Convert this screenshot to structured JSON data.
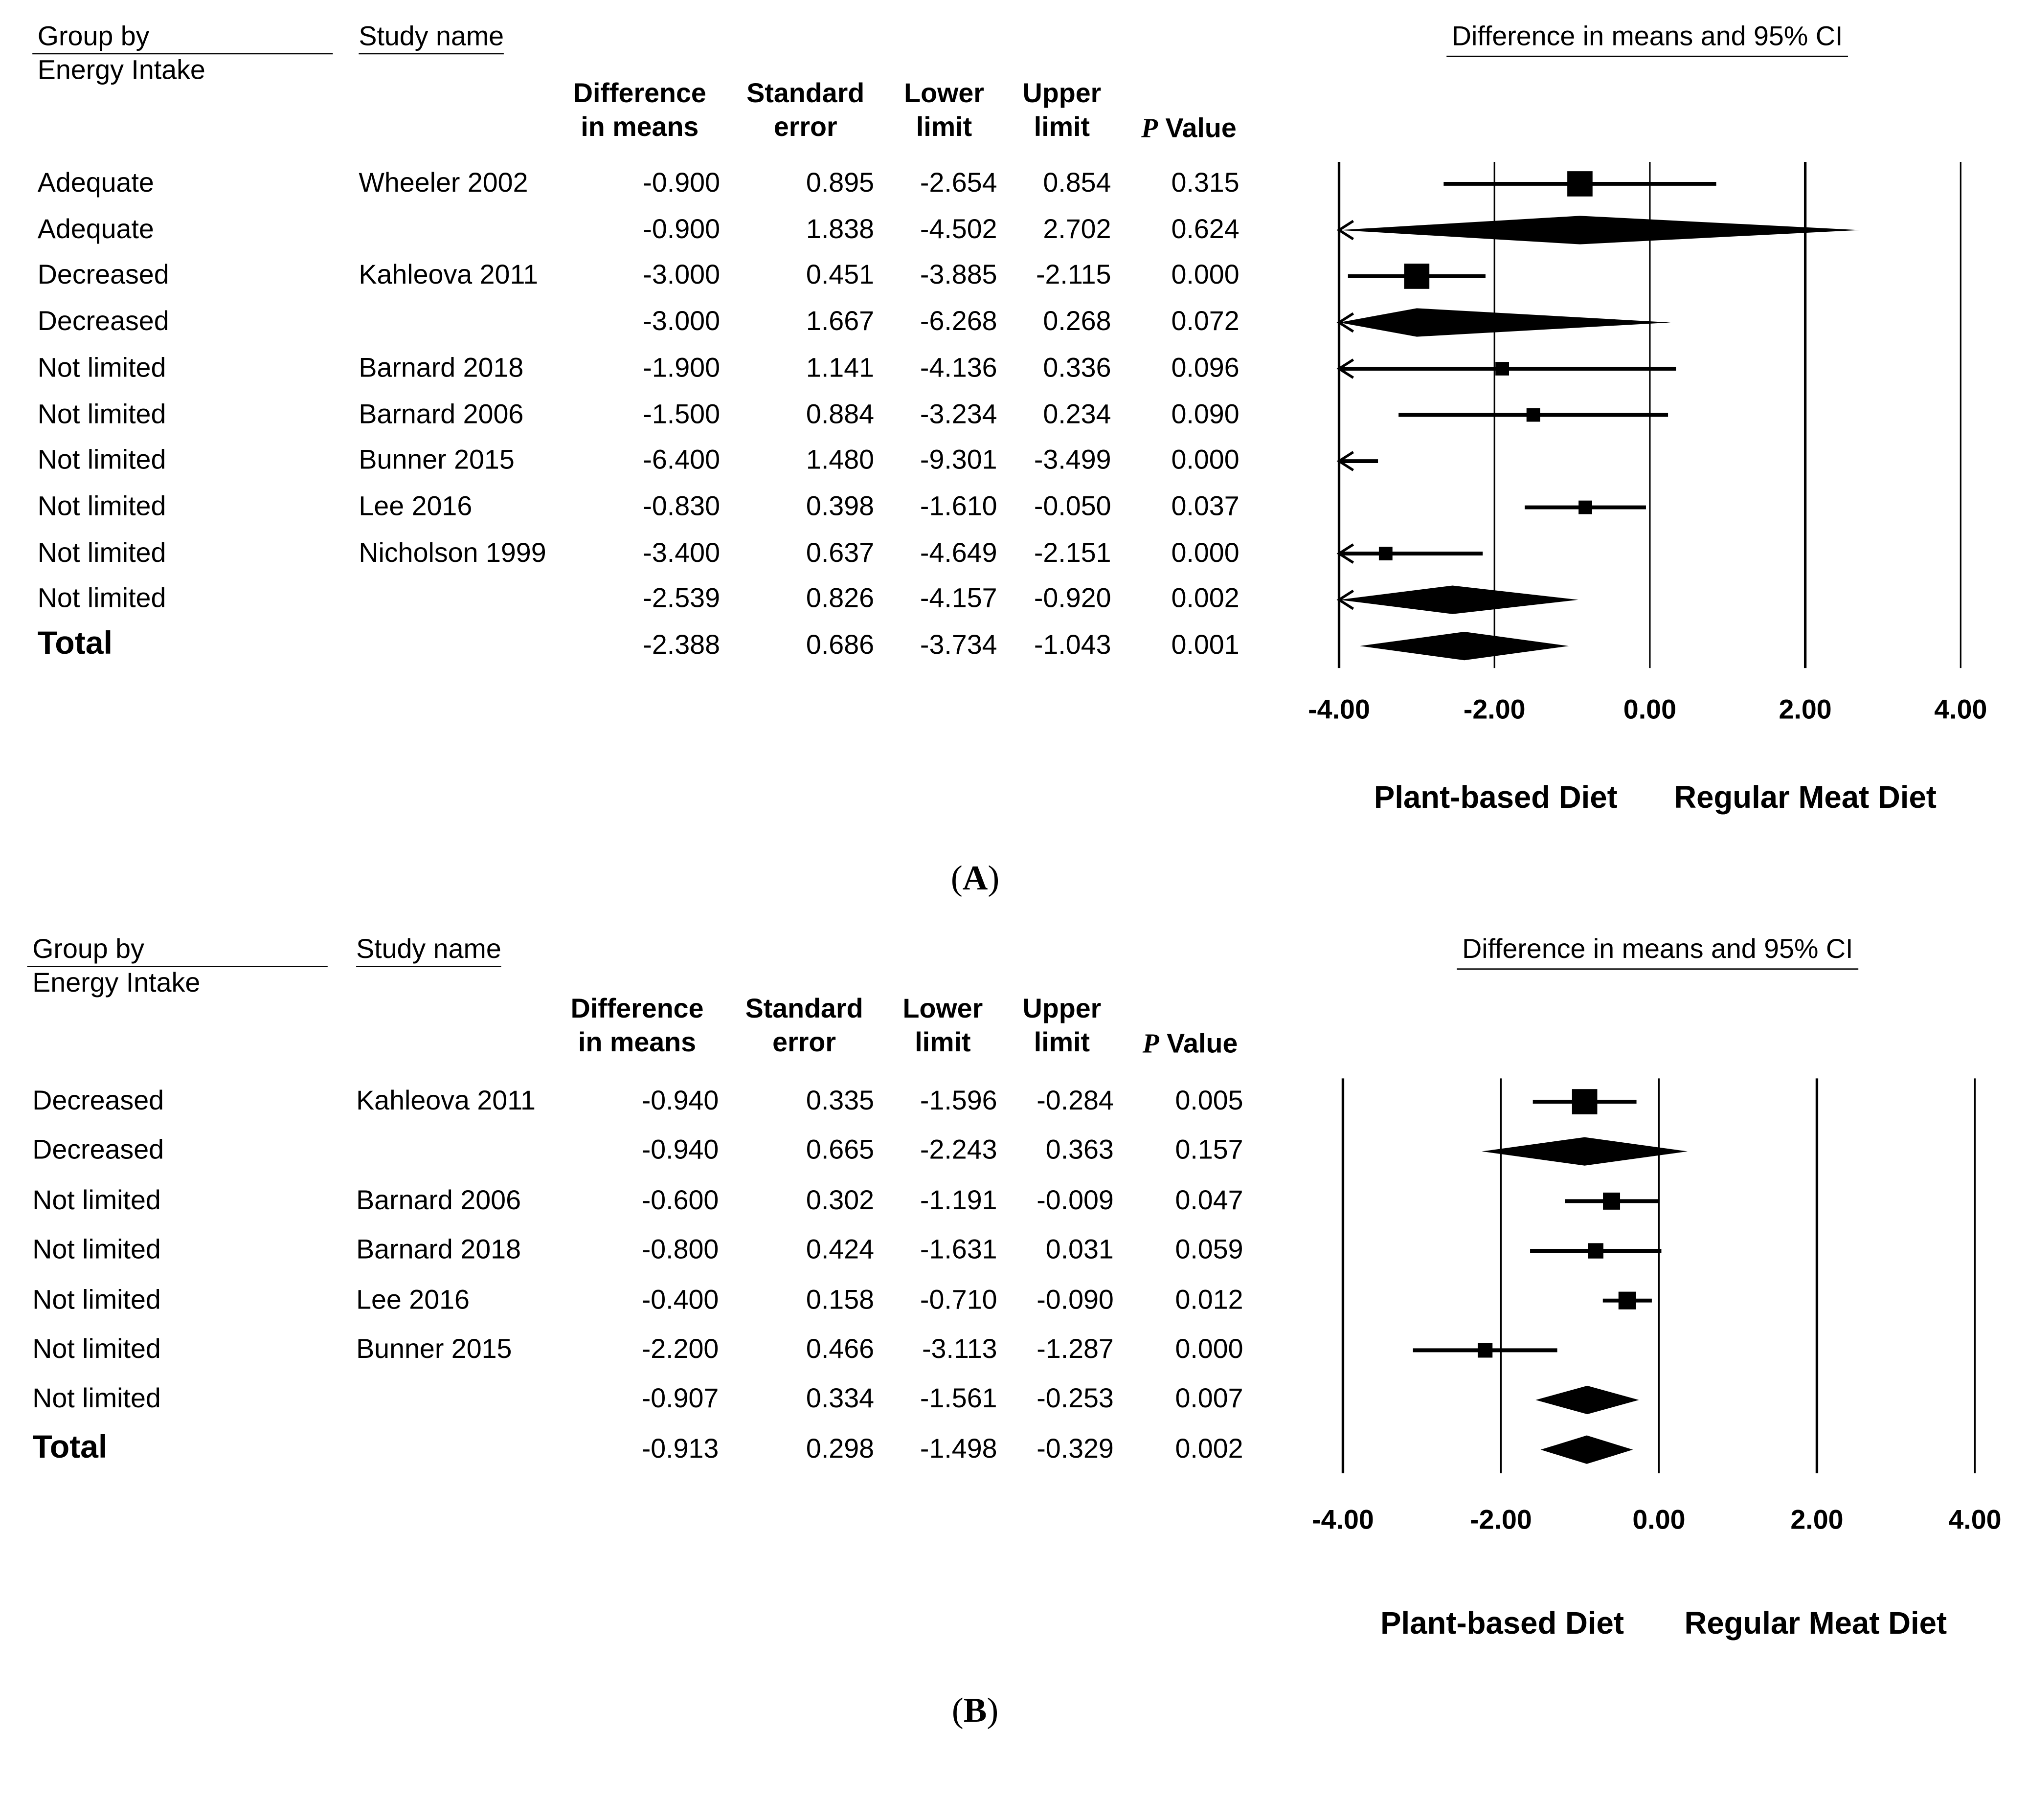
{
  "chart_data": [
    {
      "type": "forest",
      "panel_label": "A",
      "title": "Difference in means and 95% CI",
      "columns": {
        "group": "Group by",
        "group_sub": "Energy Intake",
        "study": "Study name",
        "diff": [
          "Difference",
          "in means"
        ],
        "se": [
          "Standard",
          "error"
        ],
        "lower": [
          "Lower",
          "limit"
        ],
        "upper": [
          "Upper",
          "limit"
        ],
        "p_italic": "P",
        "p_rest": " Value"
      },
      "xlim": [
        -4,
        4
      ],
      "xticks": [
        "-4.00",
        "-2.00",
        "0.00",
        "2.00",
        "4.00"
      ],
      "xtick_values": [
        -4,
        -2,
        0,
        2,
        4
      ],
      "left_label": "Plant-based Diet",
      "right_label": "Regular Meat Diet",
      "rows": [
        {
          "group": "Adequate",
          "study": "Wheeler 2002",
          "diff": "-0.900",
          "se": "0.895",
          "lower": "-2.654",
          "upper": "0.854",
          "p": "0.315",
          "kind": "study",
          "weight": 3
        },
        {
          "group": "Adequate",
          "study": "",
          "diff": "-0.900",
          "se": "1.838",
          "lower": "-4.502",
          "upper": "2.702",
          "p": "0.624",
          "kind": "subtotal"
        },
        {
          "group": "Decreased",
          "study": "Kahleova 2011",
          "diff": "-3.000",
          "se": "0.451",
          "lower": "-3.885",
          "upper": "-2.115",
          "p": "0.000",
          "kind": "study",
          "weight": 3
        },
        {
          "group": "Decreased",
          "study": "",
          "diff": "-3.000",
          "se": "1.667",
          "lower": "-6.268",
          "upper": "0.268",
          "p": "0.072",
          "kind": "subtotal"
        },
        {
          "group": "Not limited",
          "study": "Barnard 2018",
          "diff": "-1.900",
          "se": "1.141",
          "lower": "-4.136",
          "upper": "0.336",
          "p": "0.096",
          "kind": "study",
          "weight": 1
        },
        {
          "group": "Not limited",
          "study": "Barnard 2006",
          "diff": "-1.500",
          "se": "0.884",
          "lower": "-3.234",
          "upper": "0.234",
          "p": "0.090",
          "kind": "study",
          "weight": 1
        },
        {
          "group": "Not limited",
          "study": "Bunner 2015",
          "diff": "-6.400",
          "se": "1.480",
          "lower": "-9.301",
          "upper": "-3.499",
          "p": "0.000",
          "kind": "study",
          "weight": 1
        },
        {
          "group": "Not limited",
          "study": "Lee 2016",
          "diff": "-0.830",
          "se": "0.398",
          "lower": "-1.610",
          "upper": "-0.050",
          "p": "0.037",
          "kind": "study",
          "weight": 1
        },
        {
          "group": "Not limited",
          "study": "Nicholson 1999",
          "diff": "-3.400",
          "se": "0.637",
          "lower": "-4.649",
          "upper": "-2.151",
          "p": "0.000",
          "kind": "study",
          "weight": 1
        },
        {
          "group": "Not limited",
          "study": "",
          "diff": "-2.539",
          "se": "0.826",
          "lower": "-4.157",
          "upper": "-0.920",
          "p": "0.002",
          "kind": "subtotal"
        },
        {
          "group": "Total",
          "study": "",
          "diff": "-2.388",
          "se": "0.686",
          "lower": "-3.734",
          "upper": "-1.043",
          "p": "0.001",
          "kind": "total"
        }
      ]
    },
    {
      "type": "forest",
      "panel_label": "B",
      "title": "Difference in means and 95% CI",
      "columns": {
        "group": "Group by",
        "group_sub": "Energy Intake",
        "study": "Study name",
        "diff": [
          "Difference",
          "in means"
        ],
        "se": [
          "Standard",
          "error"
        ],
        "lower": [
          "Lower",
          "limit"
        ],
        "upper": [
          "Upper",
          "limit"
        ],
        "p_italic": "P",
        "p_rest": " Value"
      },
      "xlim": [
        -4,
        4
      ],
      "xticks": [
        "-4.00",
        "-2.00",
        "0.00",
        "2.00",
        "4.00"
      ],
      "xtick_values": [
        -4,
        -2,
        0,
        2,
        4
      ],
      "left_label": "Plant-based Diet",
      "right_label": "Regular Meat Diet",
      "rows": [
        {
          "group": "Decreased",
          "study": "Kahleova 2011",
          "diff": "-0.940",
          "se": "0.335",
          "lower": "-1.596",
          "upper": "-0.284",
          "p": "0.005",
          "kind": "study",
          "weight": 3
        },
        {
          "group": "Decreased",
          "study": "",
          "diff": "-0.940",
          "se": "0.665",
          "lower": "-2.243",
          "upper": "0.363",
          "p": "0.157",
          "kind": "subtotal"
        },
        {
          "group": "Not limited",
          "study": "Barnard 2006",
          "diff": "-0.600",
          "se": "0.302",
          "lower": "-1.191",
          "upper": "-0.009",
          "p": "0.047",
          "kind": "study",
          "weight": 1.6
        },
        {
          "group": "Not limited",
          "study": "Barnard 2018",
          "diff": "-0.800",
          "se": "0.424",
          "lower": "-1.631",
          "upper": "0.031",
          "p": "0.059",
          "kind": "study",
          "weight": 1.3
        },
        {
          "group": "Not limited",
          "study": "Lee 2016",
          "diff": "-0.400",
          "se": "0.158",
          "lower": "-0.710",
          "upper": "-0.090",
          "p": "0.012",
          "kind": "study",
          "weight": 1.7
        },
        {
          "group": "Not limited",
          "study": "Bunner 2015",
          "diff": "-2.200",
          "se": "0.466",
          "lower": "-3.113",
          "upper": "-1.287",
          "p": "0.000",
          "kind": "study",
          "weight": 1.2
        },
        {
          "group": "Not limited",
          "study": "",
          "diff": "-0.907",
          "se": "0.334",
          "lower": "-1.561",
          "upper": "-0.253",
          "p": "0.007",
          "kind": "subtotal"
        },
        {
          "group": "Total",
          "study": "",
          "diff": "-0.913",
          "se": "0.298",
          "lower": "-1.498",
          "upper": "-0.329",
          "p": "0.002",
          "kind": "total"
        }
      ]
    }
  ]
}
